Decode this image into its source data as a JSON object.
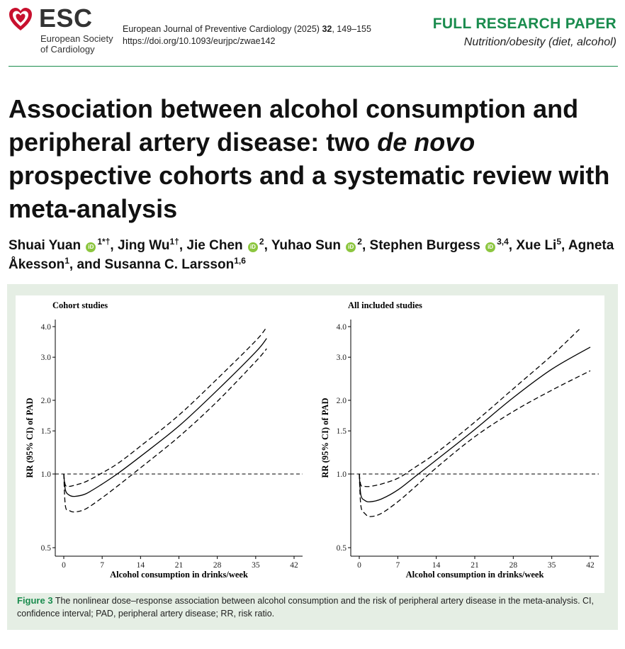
{
  "header": {
    "logo_text": "ESC",
    "society_line1": "European Society",
    "society_line2": "of Cardiology",
    "journal_name": "European Journal of Preventive Cardiology (2025)",
    "volume": "32",
    "pages": ", 149–155",
    "doi": "https://doi.org/10.1093/eurjpc/zwae142",
    "paper_type": "FULL RESEARCH PAPER",
    "section": "Nutrition/obesity (diet, alcohol)",
    "accent_color": "#1a8c4e"
  },
  "title": {
    "part1": "Association between alcohol consumption and peripheral artery disease: two ",
    "italic": "de novo",
    "part2": " prospective cohorts and a systematic review with meta-analysis"
  },
  "authors": [
    {
      "name": "Shuai Yuan",
      "orcid": true,
      "sup": "1*†",
      "sep": ", "
    },
    {
      "name": "Jing Wu",
      "orcid": false,
      "sup": "1†",
      "sep": ", "
    },
    {
      "name": "Jie Chen",
      "orcid": true,
      "sup": "2",
      "sep": ", "
    },
    {
      "name": "Yuhao Sun",
      "orcid": true,
      "sup": "2",
      "sep": ", "
    },
    {
      "name": "Stephen Burgess",
      "orcid": true,
      "sup": "3,4",
      "sep": ", "
    },
    {
      "name": "Xue Li",
      "orcid": false,
      "sup": "5",
      "sep": ", "
    },
    {
      "name": "Agneta Åkesson",
      "orcid": false,
      "sup": "1",
      "sep": ", and "
    },
    {
      "name": "Susanna C. Larsson",
      "orcid": false,
      "sup": "1,6",
      "sep": ""
    }
  ],
  "orcid_icon_text": "iD",
  "figure": {
    "label": "Figure 3",
    "caption": "The nonlinear dose–response association between alcohol consumption and the risk of peripheral artery disease in the meta-analysis. CI, confidence interval; PAD, peripheral artery disease; RR, risk ratio."
  },
  "chart_data": [
    {
      "type": "line",
      "title": "Cohort studies",
      "xlabel": "Alcohol consumption in drinks/week",
      "ylabel": "RR (95% CI) of PAD",
      "x_ticks": [
        0,
        7,
        14,
        21,
        28,
        35,
        42
      ],
      "y_ticks": [
        0.5,
        1.0,
        1.5,
        2.0,
        3.0,
        4.0
      ],
      "y_tick_labels": [
        "0.5",
        "1.0",
        "1.5",
        "2.0",
        "3.0",
        "4.0"
      ],
      "xlim": [
        0,
        42
      ],
      "ylim": [
        0.5,
        4.0
      ],
      "y_scale": "log",
      "reference_line": 1.0,
      "series": [
        {
          "style": "solid",
          "x": [
            0,
            0.3,
            1,
            2,
            4,
            7,
            10,
            14,
            21,
            28,
            35,
            37
          ],
          "y": [
            1.0,
            0.86,
            0.82,
            0.81,
            0.83,
            0.91,
            1.01,
            1.18,
            1.57,
            2.2,
            3.15,
            3.58
          ]
        },
        {
          "style": "dashed",
          "x": [
            0,
            0.3,
            1,
            2,
            4,
            7,
            10,
            14,
            21,
            28,
            35,
            37
          ],
          "y": [
            1.0,
            0.9,
            0.89,
            0.9,
            0.93,
            1.01,
            1.11,
            1.3,
            1.74,
            2.45,
            3.5,
            3.98
          ]
        },
        {
          "style": "dashed",
          "x": [
            0,
            0.3,
            1,
            2,
            4,
            7,
            10,
            14,
            21,
            28,
            35,
            37
          ],
          "y": [
            1.0,
            0.74,
            0.71,
            0.7,
            0.72,
            0.8,
            0.9,
            1.06,
            1.42,
            1.98,
            2.88,
            3.25
          ]
        }
      ]
    },
    {
      "type": "line",
      "title": "All included studies",
      "xlabel": "Alcohol consumption in drinks/week",
      "ylabel": "RR (95% CI) of PAD",
      "x_ticks": [
        0,
        7,
        14,
        21,
        28,
        35,
        42
      ],
      "y_ticks": [
        0.5,
        1.0,
        1.5,
        2.0,
        3.0,
        4.0
      ],
      "y_tick_labels": [
        "0.5",
        "1.0",
        "1.5",
        "2.0",
        "3.0",
        "4.0"
      ],
      "xlim": [
        0,
        42
      ],
      "ylim": [
        0.5,
        4.0
      ],
      "y_scale": "log",
      "reference_line": 1.0,
      "series": [
        {
          "style": "solid",
          "x": [
            0,
            0.3,
            1,
            2,
            4,
            7,
            10,
            14,
            21,
            28,
            35,
            42
          ],
          "y": [
            1.0,
            0.82,
            0.78,
            0.77,
            0.79,
            0.86,
            0.97,
            1.14,
            1.52,
            2.05,
            2.68,
            3.3
          ]
        },
        {
          "style": "dashed",
          "x": [
            0,
            0.3,
            1,
            2,
            4,
            7,
            10,
            14,
            21,
            28,
            35,
            40
          ],
          "y": [
            1.0,
            0.9,
            0.89,
            0.89,
            0.91,
            0.96,
            1.06,
            1.22,
            1.63,
            2.23,
            3.05,
            3.9
          ]
        },
        {
          "style": "dashed",
          "x": [
            0,
            0.3,
            1,
            2,
            4,
            7,
            10,
            14,
            21,
            28,
            35,
            42
          ],
          "y": [
            1.0,
            0.74,
            0.69,
            0.67,
            0.69,
            0.77,
            0.88,
            1.06,
            1.42,
            1.8,
            2.2,
            2.64
          ]
        }
      ]
    }
  ]
}
